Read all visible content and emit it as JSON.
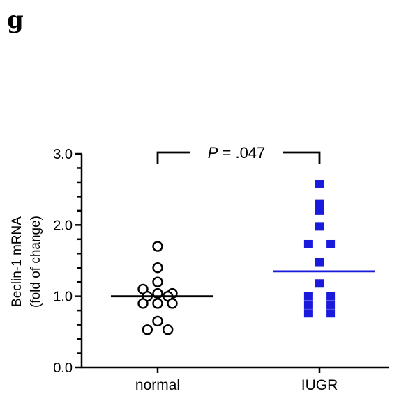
{
  "panel_label": "g",
  "chart_data": {
    "type": "scatter",
    "ylabel_line1": "Beclin-1 mRNA",
    "ylabel_line2": "(fold of change)",
    "ylim": [
      0,
      3.0
    ],
    "yticks": [
      "0.0",
      "1.0",
      "2.0",
      "3.0"
    ],
    "categories": [
      "normal",
      "IUGR"
    ],
    "series": [
      {
        "category": "normal",
        "marker": "open-circle",
        "color": "#000000",
        "median": 1.0,
        "points": [
          1.7,
          1.4,
          1.2,
          1.1,
          1.04,
          1.0,
          1.0,
          1.04,
          0.9,
          0.9,
          0.9,
          0.65,
          0.53,
          0.53
        ]
      },
      {
        "category": "IUGR",
        "marker": "filled-square",
        "color": "#1a1adc",
        "median": 1.35,
        "points": [
          2.58,
          2.3,
          2.2,
          1.98,
          1.73,
          1.73,
          1.48,
          1.18,
          1.0,
          1.0,
          0.88,
          0.88,
          0.76,
          0.76
        ]
      }
    ],
    "annotation": {
      "p_label": "P",
      "p_value": " = .047"
    }
  }
}
